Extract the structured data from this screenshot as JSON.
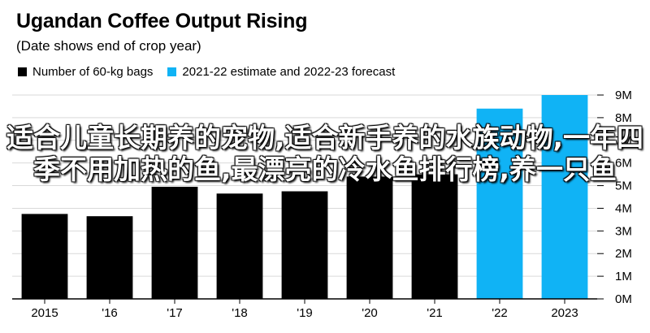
{
  "chart_data": {
    "type": "bar",
    "title": "Ugandan Coffee Output Rising",
    "subtitle": "(Date shows end of crop year)",
    "legend": {
      "placement": "top-left",
      "entries": [
        {
          "label": "Number of 60-kg bags",
          "color": "#000000"
        },
        {
          "label": "2021-22 estimate and 2022-23 forecast",
          "color": "#10b3f5"
        }
      ]
    },
    "categories": [
      "2015",
      "'16",
      "'17",
      "'18",
      "'19",
      "'20",
      "'21",
      "'22",
      "2023"
    ],
    "values": [
      3.75,
      3.65,
      4.95,
      4.65,
      4.75,
      5.4,
      5.5,
      8.4,
      9.0
    ],
    "colors": [
      "#000000",
      "#000000",
      "#000000",
      "#000000",
      "#000000",
      "#000000",
      "#000000",
      "#10b3f5",
      "#10b3f5"
    ],
    "y_ticks": [
      "0M",
      "1M",
      "2M",
      "3M",
      "4M",
      "5M",
      "6M",
      "7M",
      "8M",
      "9M"
    ],
    "ylim": [
      0,
      9
    ],
    "grid": "horizontal",
    "y_axis_side": "right"
  },
  "overlay_text": "适合儿童长期养的宠物,适合新手养的水族动物,一年四季不用加热的鱼,最漂亮的冷水鱼排行榜,养一只鱼"
}
